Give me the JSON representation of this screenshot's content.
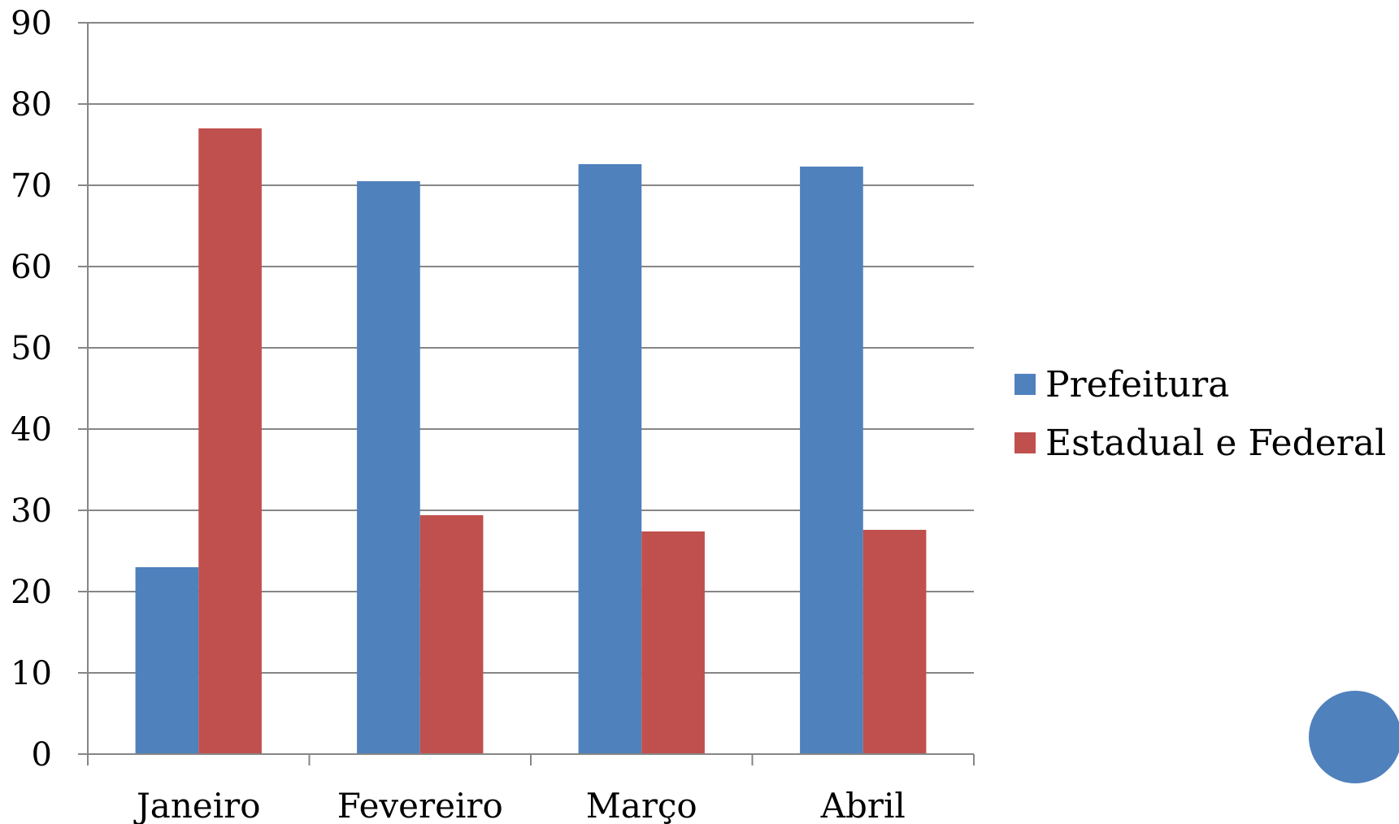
{
  "chart_data": {
    "type": "bar",
    "categories": [
      "Janeiro",
      "Fevereiro",
      "Março",
      "Abril"
    ],
    "series": [
      {
        "name": "Prefeitura",
        "values": [
          23,
          70.5,
          72.6,
          72.3
        ],
        "color": "#4F81BD"
      },
      {
        "name": "Estadual e Federal",
        "values": [
          77,
          29.4,
          27.4,
          27.6
        ],
        "color": "#C0504D"
      }
    ],
    "ylim": [
      0,
      90
    ],
    "yticks": [
      "0",
      "10",
      "20",
      "30",
      "40",
      "50",
      "60",
      "70",
      "80",
      "90"
    ],
    "grid": true,
    "legend_position": "right"
  },
  "decoration": {
    "circle_color": "#4F81BD"
  }
}
